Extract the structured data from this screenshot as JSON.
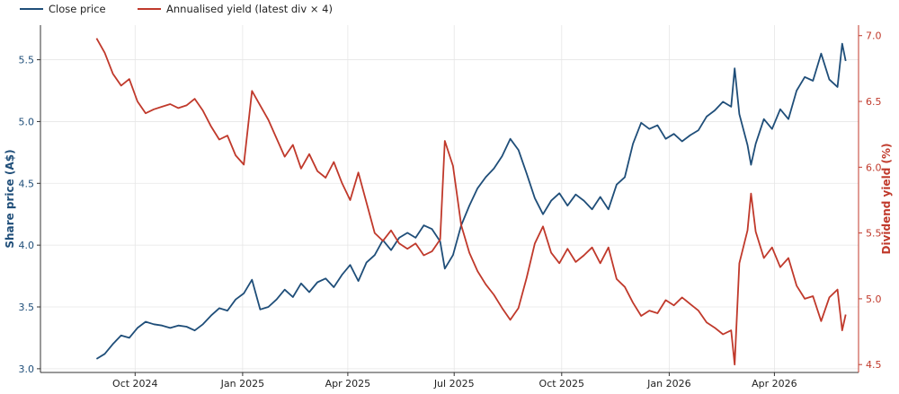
{
  "chart_data": {
    "type": "line",
    "x_axis": {
      "tick_labels": [
        "Oct 2024",
        "Jan 2025",
        "Apr 2025",
        "Jul 2025",
        "Oct 2025",
        "Jan 2026",
        "Apr 2026"
      ],
      "tick_dates": [
        "2024-10-01",
        "2025-01-01",
        "2025-04-01",
        "2025-07-01",
        "2025-10-01",
        "2026-01-01",
        "2026-04-01"
      ],
      "range": [
        "2024-07-12",
        "2026-06-12"
      ]
    },
    "y_left": {
      "label": "Share price (A$)",
      "color": "#1f4e79",
      "ticks": [
        3.0,
        3.5,
        4.0,
        4.5,
        5.0,
        5.5
      ],
      "tick_labels": [
        "3.0",
        "3.5",
        "4.0",
        "4.5",
        "5.0",
        "5.5"
      ],
      "range": [
        2.97,
        5.78
      ]
    },
    "y_right": {
      "label": "Dividend yield (%)",
      "color": "#c0392b",
      "ticks": [
        4.5,
        5.0,
        5.5,
        6.0,
        6.5,
        7.0
      ],
      "tick_labels": [
        "4.5",
        "5.0",
        "5.5",
        "6.0",
        "6.5",
        "7.0"
      ],
      "range": [
        4.44,
        7.08
      ]
    },
    "grid": true,
    "legend_position": "top-left",
    "series": [
      {
        "name": "Close price",
        "axis": "left",
        "color": "#1f4e79",
        "points": [
          [
            "2024-08-29",
            3.08
          ],
          [
            "2024-09-05",
            3.12
          ],
          [
            "2024-09-12",
            3.2
          ],
          [
            "2024-09-19",
            3.27
          ],
          [
            "2024-09-26",
            3.25
          ],
          [
            "2024-10-03",
            3.33
          ],
          [
            "2024-10-10",
            3.38
          ],
          [
            "2024-10-17",
            3.36
          ],
          [
            "2024-10-24",
            3.35
          ],
          [
            "2024-10-31",
            3.33
          ],
          [
            "2024-11-07",
            3.35
          ],
          [
            "2024-11-14",
            3.34
          ],
          [
            "2024-11-21",
            3.31
          ],
          [
            "2024-11-28",
            3.36
          ],
          [
            "2024-12-05",
            3.43
          ],
          [
            "2024-12-12",
            3.49
          ],
          [
            "2024-12-19",
            3.47
          ],
          [
            "2024-12-26",
            3.56
          ],
          [
            "2025-01-02",
            3.61
          ],
          [
            "2025-01-09",
            3.72
          ],
          [
            "2025-01-16",
            3.48
          ],
          [
            "2025-01-23",
            3.5
          ],
          [
            "2025-01-30",
            3.56
          ],
          [
            "2025-02-06",
            3.64
          ],
          [
            "2025-02-13",
            3.58
          ],
          [
            "2025-02-20",
            3.69
          ],
          [
            "2025-02-27",
            3.62
          ],
          [
            "2025-03-06",
            3.7
          ],
          [
            "2025-03-13",
            3.73
          ],
          [
            "2025-03-20",
            3.66
          ],
          [
            "2025-03-27",
            3.76
          ],
          [
            "2025-04-03",
            3.84
          ],
          [
            "2025-04-10",
            3.71
          ],
          [
            "2025-04-17",
            3.86
          ],
          [
            "2025-04-24",
            3.92
          ],
          [
            "2025-05-01",
            4.04
          ],
          [
            "2025-05-08",
            3.96
          ],
          [
            "2025-05-15",
            4.06
          ],
          [
            "2025-05-22",
            4.1
          ],
          [
            "2025-05-29",
            4.06
          ],
          [
            "2025-06-05",
            4.16
          ],
          [
            "2025-06-12",
            4.13
          ],
          [
            "2025-06-19",
            4.03
          ],
          [
            "2025-06-23",
            3.81
          ],
          [
            "2025-06-30",
            3.92
          ],
          [
            "2025-07-07",
            4.16
          ],
          [
            "2025-07-14",
            4.32
          ],
          [
            "2025-07-21",
            4.46
          ],
          [
            "2025-07-28",
            4.55
          ],
          [
            "2025-08-04",
            4.62
          ],
          [
            "2025-08-11",
            4.72
          ],
          [
            "2025-08-18",
            4.86
          ],
          [
            "2025-08-25",
            4.77
          ],
          [
            "2025-09-01",
            4.58
          ],
          [
            "2025-09-08",
            4.38
          ],
          [
            "2025-09-15",
            4.25
          ],
          [
            "2025-09-22",
            4.36
          ],
          [
            "2025-09-29",
            4.42
          ],
          [
            "2025-10-06",
            4.32
          ],
          [
            "2025-10-13",
            4.41
          ],
          [
            "2025-10-20",
            4.36
          ],
          [
            "2025-10-27",
            4.29
          ],
          [
            "2025-11-03",
            4.39
          ],
          [
            "2025-11-10",
            4.29
          ],
          [
            "2025-11-17",
            4.49
          ],
          [
            "2025-11-24",
            4.55
          ],
          [
            "2025-12-01",
            4.82
          ],
          [
            "2025-12-08",
            4.99
          ],
          [
            "2025-12-15",
            4.94
          ],
          [
            "2025-12-22",
            4.97
          ],
          [
            "2025-12-29",
            4.86
          ],
          [
            "2026-01-05",
            4.9
          ],
          [
            "2026-01-12",
            4.84
          ],
          [
            "2026-01-19",
            4.89
          ],
          [
            "2026-01-26",
            4.93
          ],
          [
            "2026-02-02",
            5.04
          ],
          [
            "2026-02-09",
            5.09
          ],
          [
            "2026-02-16",
            5.16
          ],
          [
            "2026-02-23",
            5.12
          ],
          [
            "2026-02-26",
            5.43
          ],
          [
            "2026-03-02",
            5.06
          ],
          [
            "2026-03-09",
            4.81
          ],
          [
            "2026-03-12",
            4.65
          ],
          [
            "2026-03-16",
            4.82
          ],
          [
            "2026-03-23",
            5.02
          ],
          [
            "2026-03-30",
            4.94
          ],
          [
            "2026-04-06",
            5.1
          ],
          [
            "2026-04-13",
            5.02
          ],
          [
            "2026-04-20",
            5.25
          ],
          [
            "2026-04-27",
            5.36
          ],
          [
            "2026-05-04",
            5.33
          ],
          [
            "2026-05-11",
            5.55
          ],
          [
            "2026-05-18",
            5.34
          ],
          [
            "2026-05-25",
            5.28
          ],
          [
            "2026-05-29",
            5.63
          ],
          [
            "2026-06-01",
            5.49
          ]
        ]
      },
      {
        "name": "Annualised yield (latest div × 4)",
        "axis": "right",
        "color": "#c0392b",
        "points": [
          [
            "2024-08-29",
            6.98
          ],
          [
            "2024-09-05",
            6.87
          ],
          [
            "2024-09-12",
            6.71
          ],
          [
            "2024-09-19",
            6.62
          ],
          [
            "2024-09-26",
            6.67
          ],
          [
            "2024-10-03",
            6.5
          ],
          [
            "2024-10-10",
            6.41
          ],
          [
            "2024-10-17",
            6.44
          ],
          [
            "2024-10-24",
            6.46
          ],
          [
            "2024-10-31",
            6.48
          ],
          [
            "2024-11-07",
            6.45
          ],
          [
            "2024-11-14",
            6.47
          ],
          [
            "2024-11-21",
            6.52
          ],
          [
            "2024-11-28",
            6.43
          ],
          [
            "2024-12-05",
            6.31
          ],
          [
            "2024-12-12",
            6.21
          ],
          [
            "2024-12-19",
            6.24
          ],
          [
            "2024-12-26",
            6.09
          ],
          [
            "2025-01-02",
            6.02
          ],
          [
            "2025-01-09",
            6.58
          ],
          [
            "2025-01-16",
            6.47
          ],
          [
            "2025-01-23",
            6.36
          ],
          [
            "2025-01-30",
            6.22
          ],
          [
            "2025-02-06",
            6.08
          ],
          [
            "2025-02-13",
            6.17
          ],
          [
            "2025-02-20",
            5.99
          ],
          [
            "2025-02-27",
            6.1
          ],
          [
            "2025-03-06",
            5.97
          ],
          [
            "2025-03-13",
            5.92
          ],
          [
            "2025-03-20",
            6.04
          ],
          [
            "2025-03-27",
            5.88
          ],
          [
            "2025-04-03",
            5.75
          ],
          [
            "2025-04-10",
            5.96
          ],
          [
            "2025-04-17",
            5.73
          ],
          [
            "2025-04-24",
            5.5
          ],
          [
            "2025-05-01",
            5.44
          ],
          [
            "2025-05-08",
            5.52
          ],
          [
            "2025-05-15",
            5.42
          ],
          [
            "2025-05-22",
            5.38
          ],
          [
            "2025-05-29",
            5.42
          ],
          [
            "2025-06-05",
            5.33
          ],
          [
            "2025-06-12",
            5.36
          ],
          [
            "2025-06-19",
            5.45
          ],
          [
            "2025-06-23",
            6.2
          ],
          [
            "2025-06-30",
            6.01
          ],
          [
            "2025-07-07",
            5.56
          ],
          [
            "2025-07-14",
            5.35
          ],
          [
            "2025-07-21",
            5.21
          ],
          [
            "2025-07-28",
            5.11
          ],
          [
            "2025-08-04",
            5.03
          ],
          [
            "2025-08-11",
            4.93
          ],
          [
            "2025-08-18",
            4.84
          ],
          [
            "2025-08-25",
            4.93
          ],
          [
            "2025-09-01",
            5.16
          ],
          [
            "2025-09-08",
            5.42
          ],
          [
            "2025-09-15",
            5.55
          ],
          [
            "2025-09-22",
            5.35
          ],
          [
            "2025-09-29",
            5.27
          ],
          [
            "2025-10-06",
            5.38
          ],
          [
            "2025-10-13",
            5.28
          ],
          [
            "2025-10-20",
            5.33
          ],
          [
            "2025-10-27",
            5.39
          ],
          [
            "2025-11-03",
            5.27
          ],
          [
            "2025-11-10",
            5.39
          ],
          [
            "2025-11-17",
            5.15
          ],
          [
            "2025-11-24",
            5.09
          ],
          [
            "2025-12-01",
            4.97
          ],
          [
            "2025-12-08",
            4.87
          ],
          [
            "2025-12-15",
            4.91
          ],
          [
            "2025-12-22",
            4.89
          ],
          [
            "2025-12-29",
            4.99
          ],
          [
            "2026-01-05",
            4.95
          ],
          [
            "2026-01-12",
            5.01
          ],
          [
            "2026-01-19",
            4.96
          ],
          [
            "2026-01-26",
            4.91
          ],
          [
            "2026-02-02",
            4.82
          ],
          [
            "2026-02-09",
            4.78
          ],
          [
            "2026-02-16",
            4.73
          ],
          [
            "2026-02-23",
            4.76
          ],
          [
            "2026-02-26",
            4.5
          ],
          [
            "2026-03-02",
            5.27
          ],
          [
            "2026-03-09",
            5.52
          ],
          [
            "2026-03-12",
            5.8
          ],
          [
            "2026-03-16",
            5.51
          ],
          [
            "2026-03-23",
            5.31
          ],
          [
            "2026-03-30",
            5.39
          ],
          [
            "2026-04-06",
            5.24
          ],
          [
            "2026-04-13",
            5.31
          ],
          [
            "2026-04-20",
            5.1
          ],
          [
            "2026-04-27",
            5.0
          ],
          [
            "2026-05-04",
            5.02
          ],
          [
            "2026-05-11",
            4.83
          ],
          [
            "2026-05-18",
            5.01
          ],
          [
            "2026-05-25",
            5.07
          ],
          [
            "2026-05-29",
            4.76
          ],
          [
            "2026-06-01",
            4.88
          ]
        ]
      }
    ]
  }
}
